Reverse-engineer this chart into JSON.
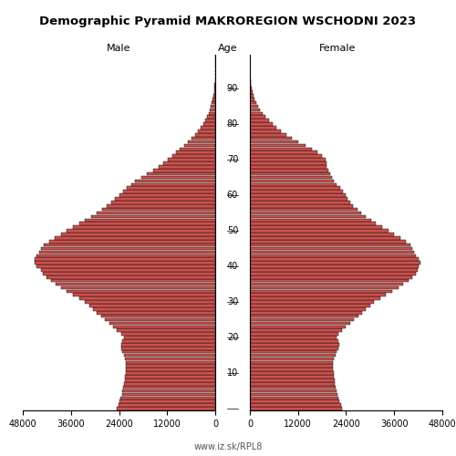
{
  "title": "Demographic Pyramid MAKROREGION WSCHODNI 2023",
  "xlabel_left": "Male",
  "xlabel_right": "Female",
  "xlabel_center": "Age",
  "watermark": "www.iz.sk/RPL8",
  "xlim": 48000,
  "bar_color": "#c8524e",
  "bar_edgecolor": "#000000",
  "bg_color": "#ffffff",
  "ages": [
    0,
    1,
    2,
    3,
    4,
    5,
    6,
    7,
    8,
    9,
    10,
    11,
    12,
    13,
    14,
    15,
    16,
    17,
    18,
    19,
    20,
    21,
    22,
    23,
    24,
    25,
    26,
    27,
    28,
    29,
    30,
    31,
    32,
    33,
    34,
    35,
    36,
    37,
    38,
    39,
    40,
    41,
    42,
    43,
    44,
    45,
    46,
    47,
    48,
    49,
    50,
    51,
    52,
    53,
    54,
    55,
    56,
    57,
    58,
    59,
    60,
    61,
    62,
    63,
    64,
    65,
    66,
    67,
    68,
    69,
    70,
    71,
    72,
    73,
    74,
    75,
    76,
    77,
    78,
    79,
    80,
    81,
    82,
    83,
    84,
    85,
    86,
    87,
    88,
    89,
    90,
    91,
    92,
    93,
    94,
    95,
    96,
    97,
    98,
    99
  ],
  "male": [
    24500,
    24200,
    23900,
    23600,
    23300,
    23100,
    22900,
    22700,
    22600,
    22500,
    22400,
    22300,
    22200,
    22300,
    22500,
    22800,
    23200,
    23500,
    23500,
    23200,
    22800,
    23500,
    24500,
    25500,
    26500,
    27500,
    28500,
    29500,
    30500,
    31500,
    32500,
    34000,
    35500,
    37000,
    38500,
    39800,
    41000,
    42000,
    43000,
    43500,
    44500,
    45000,
    45000,
    44500,
    44000,
    43500,
    42800,
    41500,
    40000,
    38500,
    37000,
    35500,
    34000,
    32500,
    31000,
    29500,
    28200,
    27000,
    26000,
    25000,
    24000,
    23000,
    22000,
    21000,
    20000,
    18500,
    17000,
    15500,
    14200,
    13000,
    11800,
    10800,
    9800,
    8800,
    7800,
    6900,
    6000,
    5100,
    4400,
    3700,
    3000,
    2450,
    2000,
    1600,
    1300,
    1050,
    800,
    620,
    460,
    330,
    220,
    150,
    100,
    65,
    40,
    25,
    14,
    8,
    4,
    2
  ],
  "female": [
    23000,
    22700,
    22400,
    22100,
    21800,
    21600,
    21400,
    21200,
    21100,
    21000,
    20900,
    20800,
    20700,
    20800,
    21000,
    21300,
    21700,
    22000,
    22200,
    22000,
    21500,
    22000,
    23000,
    24000,
    25000,
    26000,
    27000,
    28000,
    29000,
    30000,
    31000,
    32500,
    34000,
    35500,
    37000,
    38300,
    39500,
    40500,
    41500,
    41800,
    42000,
    42500,
    42000,
    41500,
    41000,
    40500,
    40000,
    39000,
    37500,
    36000,
    34500,
    33000,
    31500,
    30200,
    29000,
    27800,
    26800,
    25800,
    25000,
    24300,
    23800,
    23200,
    22500,
    21700,
    21000,
    20500,
    20000,
    19500,
    19200,
    19000,
    18800,
    18000,
    16800,
    15500,
    13800,
    12000,
    10500,
    9000,
    7800,
    6600,
    5600,
    4700,
    3900,
    3200,
    2600,
    2100,
    1650,
    1250,
    920,
    650,
    430,
    280,
    180,
    110,
    65,
    38,
    22,
    12,
    6,
    3
  ]
}
